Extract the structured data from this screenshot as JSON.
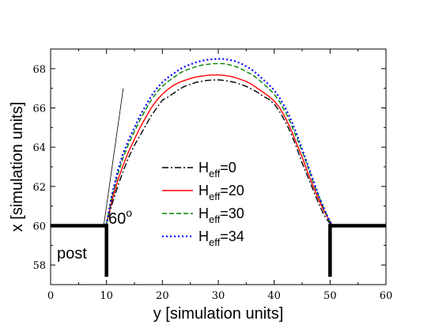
{
  "chart_data": {
    "type": "line",
    "xlabel": "y [simulation units]",
    "ylabel": "x [simulation units]",
    "xlim": [
      0,
      60
    ],
    "ylim": [
      57,
      69
    ],
    "xticks": [
      0,
      10,
      20,
      30,
      40,
      50,
      60
    ],
    "yticks": [
      58,
      60,
      62,
      64,
      66,
      68
    ],
    "grid": false,
    "legend": "center",
    "series": [
      {
        "name": "H_eff=0",
        "name_main": "H",
        "name_sub": "eff",
        "name_tail": "=0",
        "color": "#000000",
        "dash": "8,3,2,3",
        "x": [
          0,
          9.5,
          10.0,
          11,
          12,
          13,
          14,
          15,
          16,
          17,
          18,
          19,
          20,
          21,
          22,
          23,
          24,
          25,
          26,
          27,
          28,
          29,
          30,
          31,
          32,
          33,
          34,
          35,
          36,
          37,
          38,
          39,
          40,
          41,
          42,
          43,
          44,
          45,
          46,
          47,
          48,
          49,
          50,
          50.5,
          60
        ],
        "y": [
          60,
          60,
          60.1,
          61.1,
          62,
          62.8,
          63.5,
          64.1,
          64.6,
          65.1,
          65.6,
          66.0,
          66.4,
          66.55,
          66.75,
          66.95,
          67.1,
          67.2,
          67.3,
          67.35,
          67.4,
          67.42,
          67.43,
          67.4,
          67.35,
          67.3,
          67.2,
          67.1,
          66.95,
          66.8,
          66.6,
          66.45,
          66.2,
          65.8,
          65.3,
          64.7,
          64.0,
          63.2,
          62.5,
          61.8,
          61.1,
          60.5,
          60.1,
          60,
          60
        ]
      },
      {
        "name": "H_eff=20",
        "name_main": "H",
        "name_sub": "eff",
        "name_tail": "=20",
        "color": "#ff0000",
        "dash": "",
        "x": [
          0,
          9.5,
          10.0,
          11,
          12,
          13,
          14,
          15,
          16,
          17,
          18,
          19,
          20,
          21,
          22,
          23,
          24,
          25,
          26,
          27,
          28,
          29,
          30,
          31,
          32,
          33,
          34,
          35,
          36,
          37,
          38,
          39,
          40,
          41,
          42,
          43,
          44,
          45,
          46,
          47,
          48,
          49,
          50,
          50.5,
          60
        ],
        "y": [
          60,
          60,
          60.1,
          61.3,
          62.3,
          63.1,
          63.8,
          64.4,
          65.0,
          65.5,
          66.0,
          66.4,
          66.7,
          66.95,
          67.15,
          67.3,
          67.4,
          67.5,
          67.58,
          67.62,
          67.66,
          67.68,
          67.68,
          67.66,
          67.62,
          67.55,
          67.45,
          67.35,
          67.2,
          67.0,
          66.8,
          66.6,
          66.35,
          66.0,
          65.5,
          64.9,
          64.2,
          63.5,
          62.7,
          62.0,
          61.3,
          60.7,
          60.2,
          60,
          60
        ]
      },
      {
        "name": "H_eff=30",
        "name_main": "H",
        "name_sub": "eff",
        "name_tail": "=30",
        "color": "#008000",
        "dash": "6,3",
        "x": [
          0,
          9.5,
          10.0,
          11,
          12,
          13,
          14,
          15,
          16,
          17,
          18,
          19,
          20,
          21,
          22,
          23,
          24,
          25,
          26,
          27,
          28,
          29,
          30,
          31,
          32,
          33,
          34,
          35,
          36,
          37,
          38,
          39,
          40,
          41,
          42,
          43,
          44,
          45,
          46,
          47,
          48,
          49,
          50,
          50.5,
          60
        ],
        "y": [
          60,
          60,
          60.1,
          61.5,
          62.6,
          63.5,
          64.2,
          64.8,
          65.4,
          65.9,
          66.4,
          66.8,
          67.1,
          67.35,
          67.55,
          67.75,
          67.9,
          68.0,
          68.1,
          68.18,
          68.22,
          68.25,
          68.26,
          68.25,
          68.2,
          68.12,
          68.0,
          67.85,
          67.7,
          67.5,
          67.25,
          67.0,
          66.7,
          66.3,
          65.8,
          65.2,
          64.5,
          63.8,
          63.0,
          62.2,
          61.5,
          60.8,
          60.2,
          60,
          60
        ]
      },
      {
        "name": "H_eff=34",
        "name_main": "H",
        "name_sub": "eff",
        "name_tail": "=34",
        "color": "#0000ff",
        "dash": "2,3",
        "x": [
          0,
          9.5,
          10.0,
          11,
          12,
          13,
          14,
          15,
          16,
          17,
          18,
          19,
          20,
          21,
          22,
          23,
          24,
          25,
          26,
          27,
          28,
          29,
          30,
          31,
          32,
          33,
          34,
          35,
          36,
          37,
          38,
          39,
          40,
          41,
          42,
          43,
          44,
          45,
          46,
          47,
          48,
          49,
          50,
          50.5,
          60
        ],
        "y": [
          60,
          60,
          60.1,
          61.6,
          62.8,
          63.7,
          64.4,
          65.0,
          65.6,
          66.1,
          66.6,
          67.0,
          67.3,
          67.55,
          67.75,
          67.95,
          68.1,
          68.22,
          68.32,
          68.4,
          68.45,
          68.48,
          68.5,
          68.49,
          68.45,
          68.38,
          68.27,
          68.12,
          67.95,
          67.72,
          67.45,
          67.2,
          66.9,
          66.5,
          66.0,
          65.4,
          64.7,
          63.9,
          63.1,
          62.3,
          61.5,
          60.8,
          60.2,
          60,
          60
        ]
      }
    ],
    "posts": [
      {
        "x": [
          0,
          10
        ],
        "top": 60
      },
      {
        "x": [
          50,
          60
        ],
        "top": 60
      }
    ],
    "tangent_line": {
      "x": [
        9.5,
        13.0
      ],
      "y": [
        60,
        67.0
      ]
    },
    "annotations": {
      "angle_label": "60",
      "angle_degree": "o",
      "post_label": "post"
    }
  }
}
